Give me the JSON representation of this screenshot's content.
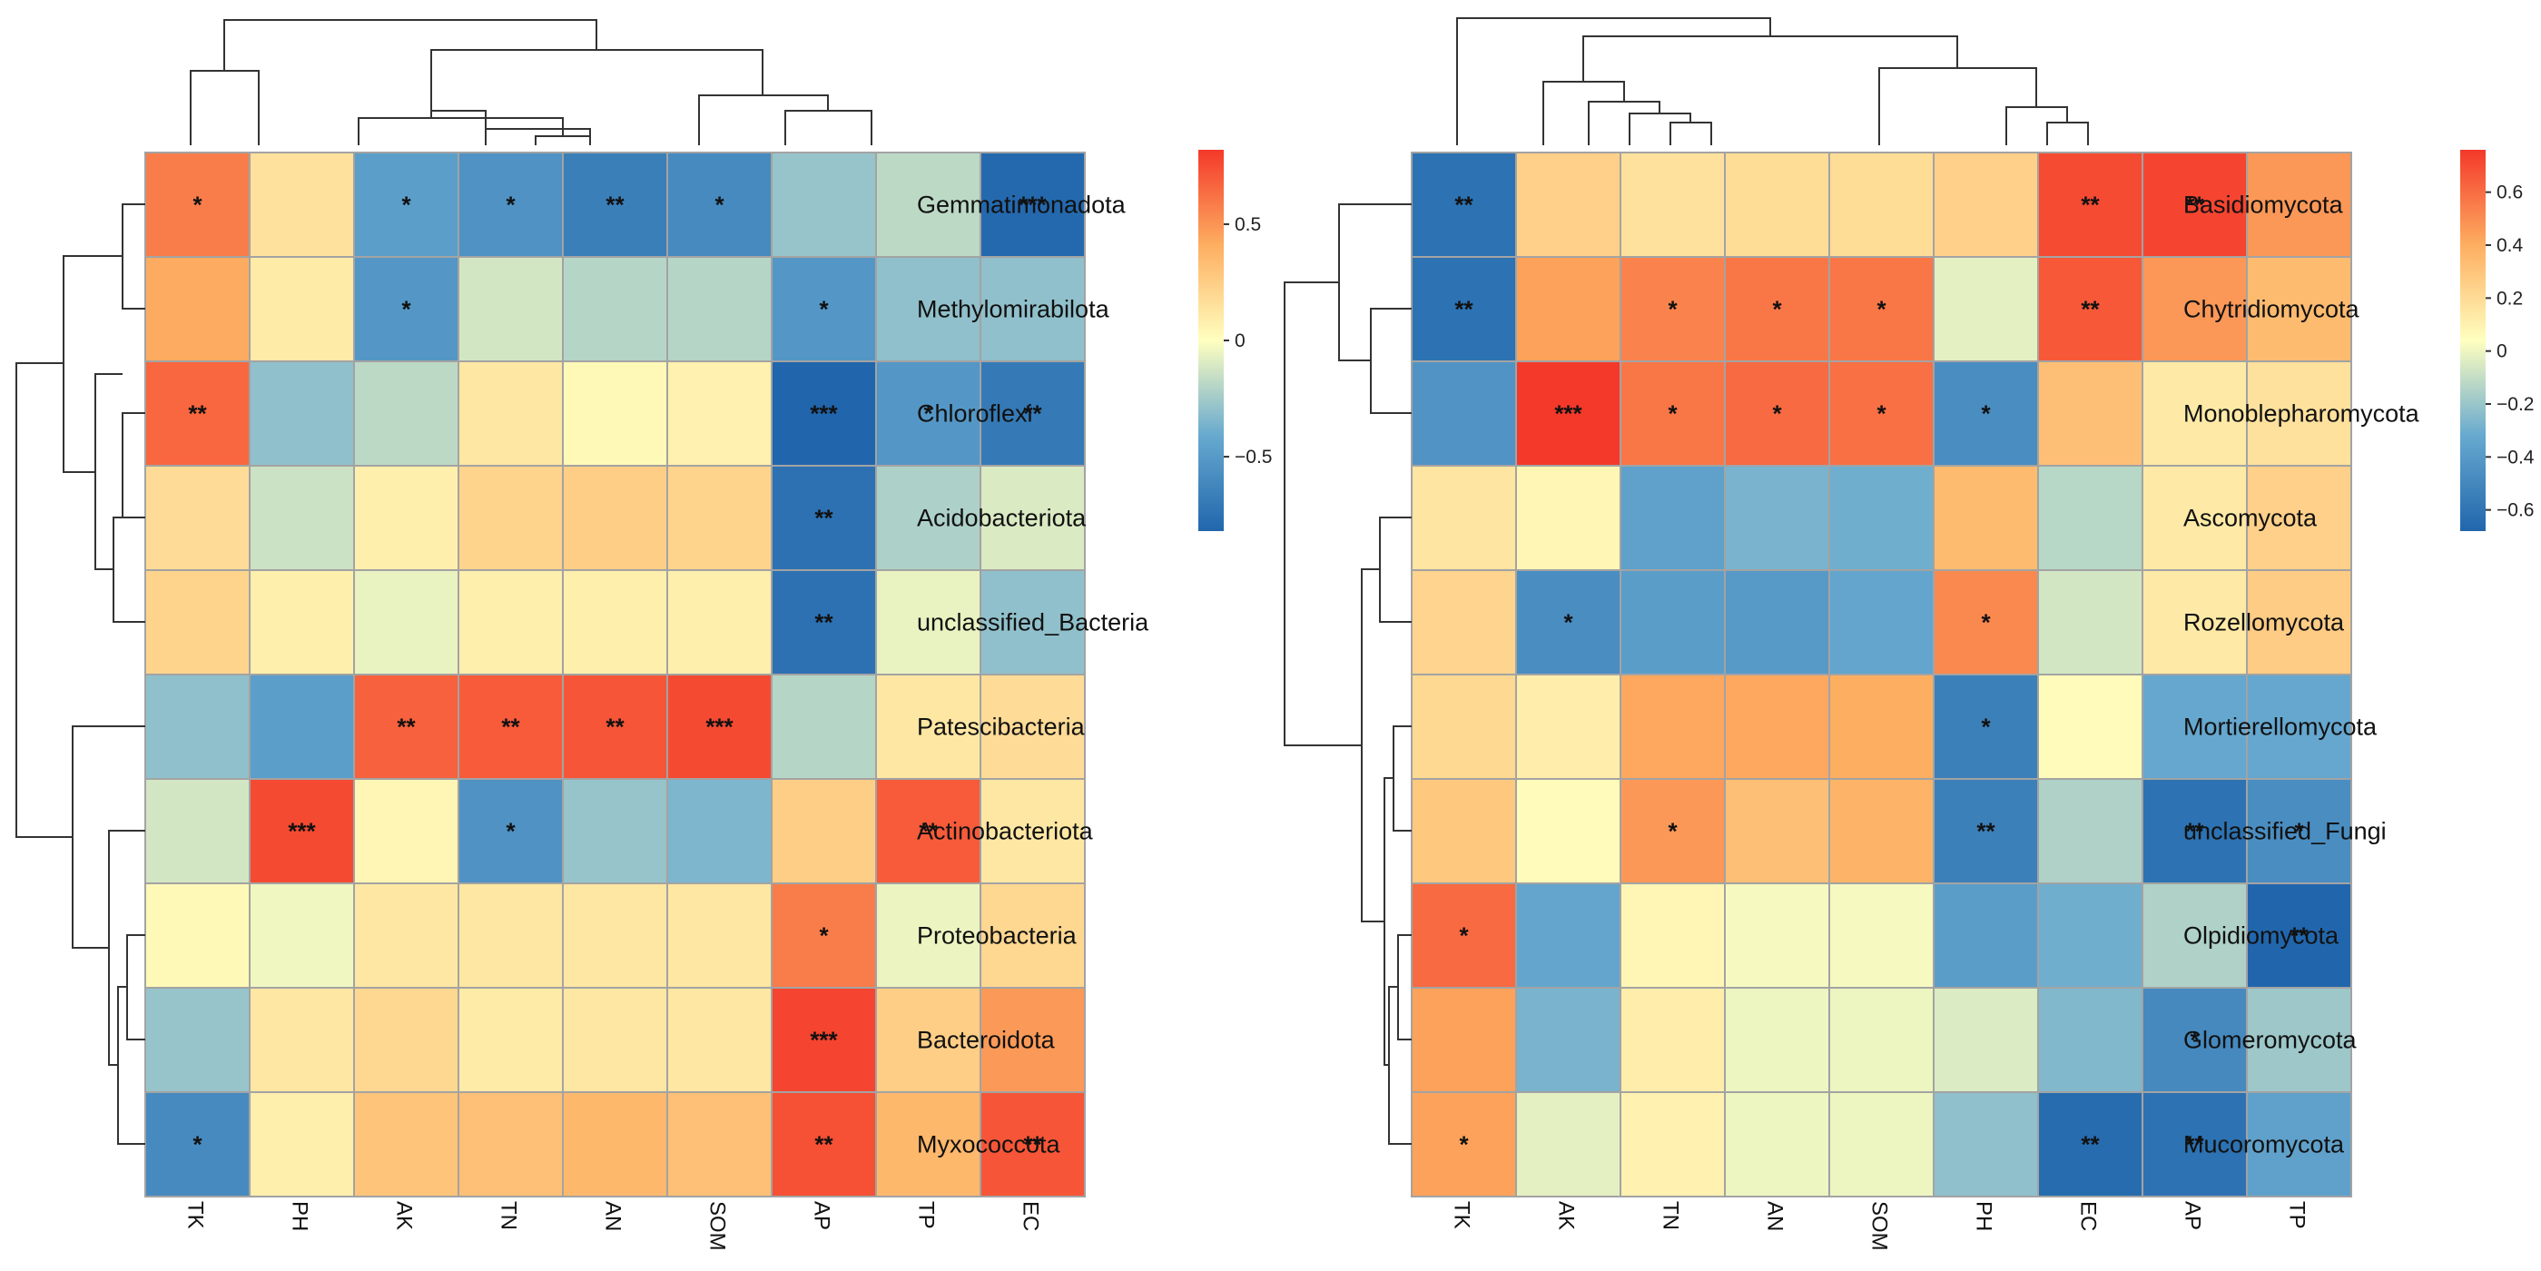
{
  "chart_data": [
    {
      "type": "heatmap",
      "title": "",
      "columns": [
        "TK",
        "PH",
        "AK",
        "TN",
        "AN",
        "SOM",
        "AP",
        "TP",
        "EC"
      ],
      "rows": [
        "Gemmatimonadota",
        "Methylomirabilota",
        "Chloroflexi",
        "Acidobacteriota",
        "unclassified_Bacteria",
        "Patescibacteria",
        "Actinobacteriota",
        "Proteobacteria",
        "Bacteroidota",
        "Myxococcota"
      ],
      "values": [
        [
          0.58,
          0.15,
          -0.48,
          -0.55,
          -0.67,
          -0.6,
          -0.28,
          -0.18,
          -0.8
        ],
        [
          0.42,
          0.1,
          -0.52,
          -0.12,
          -0.2,
          -0.2,
          -0.52,
          -0.3,
          -0.3
        ],
        [
          0.66,
          -0.3,
          -0.18,
          0.12,
          0.03,
          0.07,
          -0.82,
          -0.52,
          -0.7
        ],
        [
          0.18,
          -0.14,
          0.08,
          0.22,
          0.25,
          0.22,
          -0.75,
          -0.22,
          -0.1
        ],
        [
          0.22,
          0.08,
          -0.06,
          0.08,
          0.08,
          0.08,
          -0.75,
          -0.06,
          -0.3
        ],
        [
          -0.3,
          -0.48,
          0.68,
          0.7,
          0.72,
          0.76,
          -0.2,
          0.12,
          0.18
        ],
        [
          -0.12,
          0.76,
          0.05,
          -0.55,
          -0.28,
          -0.35,
          0.25,
          0.7,
          0.12
        ],
        [
          0.03,
          -0.04,
          0.12,
          0.12,
          0.12,
          0.12,
          0.58,
          -0.05,
          0.2
        ],
        [
          -0.28,
          0.12,
          0.2,
          0.1,
          0.12,
          0.12,
          0.78,
          0.25,
          0.48
        ],
        [
          -0.6,
          0.08,
          0.3,
          0.32,
          0.36,
          0.32,
          0.74,
          0.36,
          0.72
        ]
      ],
      "significance": [
        [
          "*",
          "",
          "*",
          "*",
          "**",
          "*",
          "",
          "",
          "***"
        ],
        [
          "",
          "",
          "*",
          "",
          "",
          "",
          "*",
          "",
          ""
        ],
        [
          "**",
          "",
          "",
          "",
          "",
          "",
          "***",
          "*",
          "**"
        ],
        [
          "",
          "",
          "",
          "",
          "",
          "",
          "**",
          "",
          ""
        ],
        [
          "",
          "",
          "",
          "",
          "",
          "",
          "**",
          "",
          ""
        ],
        [
          "",
          "",
          "**",
          "**",
          "**",
          "***",
          "",
          "",
          ""
        ],
        [
          "",
          "***",
          "",
          "*",
          "",
          "",
          "",
          "**",
          ""
        ],
        [
          "",
          "",
          "",
          "",
          "",
          "",
          "*",
          "",
          ""
        ],
        [
          "",
          "",
          "",
          "",
          "",
          "",
          "***",
          "",
          ""
        ],
        [
          "*",
          "",
          "",
          "",
          "",
          "",
          "**",
          "",
          "**"
        ]
      ],
      "color_scale": {
        "min": -0.82,
        "max": 0.82,
        "low": "#2166AC",
        "mid": "#FFFFBF",
        "high": "#F4392A"
      },
      "colorbar_ticks": [
        {
          "value": 0.5,
          "label": "0.5"
        },
        {
          "value": 0,
          "label": "0"
        },
        {
          "value": -0.5,
          "label": "−0.5"
        }
      ],
      "colorbar_min": -0.82,
      "colorbar_max": 0.82
    },
    {
      "type": "heatmap",
      "title": "",
      "columns": [
        "TK",
        "AK",
        "TN",
        "AN",
        "SOM",
        "PH",
        "EC",
        "AP",
        "TP"
      ],
      "rows": [
        "Basidiomycota",
        "Chytridiomycota",
        "Monoblepharomycota",
        "Ascomycota",
        "Rozellomycota",
        "Mortierellomycota",
        "unclassified_Fungi",
        "Olpidiomycota",
        "Glomeromycota",
        "Mucoromycota"
      ],
      "values": [
        [
          -0.62,
          0.22,
          0.14,
          0.16,
          0.16,
          0.22,
          0.7,
          0.72,
          0.45
        ],
        [
          -0.62,
          0.42,
          0.52,
          0.56,
          0.56,
          -0.06,
          0.66,
          0.45,
          0.32
        ],
        [
          -0.45,
          0.76,
          0.56,
          0.6,
          0.58,
          -0.48,
          0.3,
          0.1,
          0.14
        ],
        [
          0.12,
          0.04,
          -0.38,
          -0.3,
          -0.32,
          0.32,
          -0.16,
          0.1,
          0.22
        ],
        [
          0.2,
          -0.48,
          -0.4,
          -0.42,
          -0.36,
          0.5,
          -0.1,
          0.1,
          0.24
        ],
        [
          0.18,
          0.08,
          0.4,
          0.4,
          0.38,
          -0.55,
          0.02,
          -0.35,
          -0.35
        ],
        [
          0.26,
          0.02,
          0.45,
          0.3,
          0.35,
          -0.55,
          -0.18,
          -0.62,
          -0.48
        ],
        [
          0.6,
          -0.36,
          0.04,
          -0.02,
          -0.02,
          -0.4,
          -0.32,
          -0.18,
          -0.68
        ],
        [
          0.42,
          -0.3,
          0.08,
          -0.04,
          -0.04,
          -0.08,
          -0.28,
          -0.5,
          -0.22
        ],
        [
          0.42,
          -0.06,
          0.06,
          -0.04,
          -0.04,
          -0.25,
          -0.65,
          -0.62,
          -0.38
        ]
      ],
      "significance": [
        [
          "**",
          "",
          "",
          "",
          "",
          "",
          "**",
          "**",
          ""
        ],
        [
          "**",
          "",
          "*",
          "*",
          "*",
          "",
          "**",
          "",
          ""
        ],
        [
          "",
          "***",
          "*",
          "*",
          "*",
          "*",
          "",
          "",
          ""
        ],
        [
          "",
          "",
          "",
          "",
          "",
          "",
          "",
          "",
          ""
        ],
        [
          "",
          "*",
          "",
          "",
          "",
          "*",
          "",
          "",
          ""
        ],
        [
          "",
          "",
          "",
          "",
          "",
          "*",
          "",
          "",
          ""
        ],
        [
          "",
          "",
          "*",
          "",
          "",
          "**",
          "",
          "**",
          "*"
        ],
        [
          "*",
          "",
          "",
          "",
          "",
          "",
          "",
          "",
          "**"
        ],
        [
          "",
          "",
          "",
          "",
          "",
          "",
          "",
          "*",
          ""
        ],
        [
          "*",
          "",
          "",
          "",
          "",
          "",
          "**",
          "**",
          ""
        ]
      ],
      "color_scale": {
        "min": -0.68,
        "max": 0.76,
        "low": "#2166AC",
        "mid": "#FFFFBF",
        "high": "#F4392A"
      },
      "colorbar_ticks": [
        {
          "value": 0.6,
          "label": "0.6"
        },
        {
          "value": 0.4,
          "label": "0.4"
        },
        {
          "value": 0.2,
          "label": "0.2"
        },
        {
          "value": 0,
          "label": "0"
        },
        {
          "value": -0.2,
          "label": "−0.2"
        },
        {
          "value": -0.4,
          "label": "−0.4"
        },
        {
          "value": -0.6,
          "label": "−0.6"
        }
      ],
      "colorbar_min": -0.68,
      "colorbar_max": 0.76
    }
  ]
}
